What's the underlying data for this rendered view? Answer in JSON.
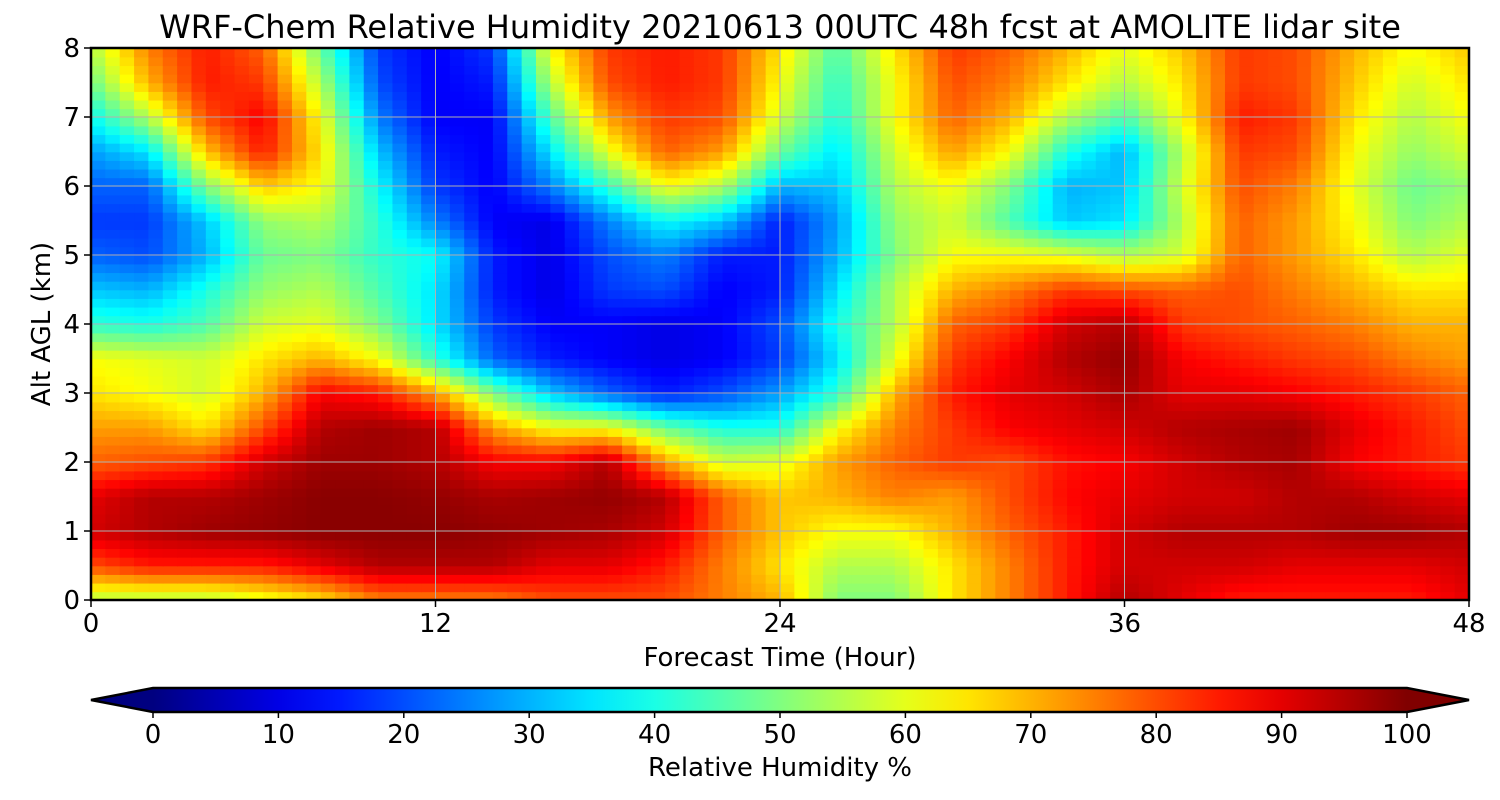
{
  "chart_data": {
    "type": "heatmap",
    "title": "WRF-Chem Relative Humidity 20210613 00UTC 48h fcst at AMOLITE lidar site",
    "xlabel": "Forecast Time (Hour)",
    "ylabel": "Alt AGL (km)",
    "xlim": [
      0,
      48
    ],
    "ylim": [
      0,
      8
    ],
    "x_ticks": [
      0,
      12,
      24,
      36,
      48
    ],
    "y_ticks": [
      0,
      1,
      2,
      3,
      4,
      5,
      6,
      7,
      8
    ],
    "grid": true,
    "colormap": "jet",
    "colorbar": {
      "label": "Relative Humidity %",
      "orientation": "horizontal",
      "position": "bottom",
      "extend": "both",
      "ticks": [
        0,
        10,
        20,
        30,
        40,
        50,
        60,
        70,
        80,
        90,
        100
      ],
      "range": [
        0,
        100
      ]
    },
    "x": [
      0,
      2,
      4,
      6,
      8,
      10,
      12,
      14,
      16,
      18,
      20,
      22,
      24,
      26,
      28,
      30,
      32,
      34,
      36,
      38,
      40,
      42,
      44,
      46,
      48
    ],
    "y": [
      0,
      0.5,
      1,
      1.5,
      2,
      2.5,
      3,
      3.5,
      4,
      4.5,
      5,
      5.5,
      6,
      6.5,
      7,
      7.5,
      8
    ],
    "z": [
      [
        55,
        55,
        55,
        60,
        65,
        75,
        75,
        75,
        80,
        80,
        80,
        75,
        70,
        50,
        50,
        65,
        75,
        85,
        95,
        90,
        85,
        85,
        85,
        85,
        90
      ],
      [
        80,
        85,
        85,
        85,
        90,
        95,
        95,
        95,
        90,
        90,
        85,
        75,
        65,
        55,
        55,
        65,
        75,
        85,
        92,
        92,
        92,
        90,
        90,
        90,
        92
      ],
      [
        92,
        95,
        97,
        98,
        99,
        99,
        99,
        98,
        97,
        96,
        92,
        78,
        68,
        62,
        62,
        70,
        78,
        85,
        92,
        95,
        95,
        95,
        97,
        97,
        95
      ],
      [
        90,
        95,
        95,
        97,
        99,
        99,
        98,
        96,
        97,
        98,
        95,
        78,
        68,
        70,
        75,
        72,
        80,
        87,
        90,
        92,
        92,
        95,
        95,
        92,
        90
      ],
      [
        78,
        80,
        82,
        92,
        97,
        97,
        95,
        88,
        88,
        95,
        72,
        58,
        60,
        72,
        78,
        82,
        80,
        86,
        88,
        92,
        95,
        96,
        88,
        85,
        82
      ],
      [
        72,
        72,
        65,
        80,
        95,
        97,
        95,
        72,
        62,
        62,
        48,
        40,
        40,
        62,
        75,
        82,
        88,
        90,
        92,
        95,
        96,
        97,
        90,
        85,
        80
      ],
      [
        65,
        62,
        58,
        70,
        88,
        85,
        72,
        50,
        32,
        22,
        15,
        20,
        28,
        42,
        70,
        85,
        90,
        92,
        96,
        90,
        90,
        88,
        85,
        82,
        78
      ],
      [
        62,
        60,
        58,
        65,
        70,
        62,
        42,
        22,
        15,
        12,
        10,
        12,
        18,
        35,
        60,
        82,
        88,
        95,
        98,
        88,
        85,
        82,
        80,
        75,
        72
      ],
      [
        42,
        40,
        45,
        58,
        60,
        50,
        35,
        18,
        12,
        12,
        10,
        12,
        20,
        40,
        55,
        78,
        82,
        92,
        95,
        82,
        80,
        78,
        75,
        70,
        70
      ],
      [
        32,
        30,
        40,
        52,
        55,
        45,
        35,
        15,
        10,
        18,
        20,
        12,
        15,
        35,
        55,
        70,
        75,
        82,
        80,
        78,
        80,
        75,
        70,
        65,
        65
      ],
      [
        22,
        20,
        30,
        48,
        50,
        42,
        38,
        15,
        10,
        20,
        25,
        15,
        15,
        30,
        50,
        62,
        62,
        60,
        55,
        58,
        78,
        72,
        65,
        55,
        60
      ],
      [
        18,
        18,
        32,
        52,
        55,
        42,
        25,
        12,
        10,
        25,
        38,
        32,
        15,
        28,
        52,
        58,
        45,
        32,
        35,
        55,
        78,
        72,
        62,
        50,
        55
      ],
      [
        22,
        22,
        50,
        68,
        62,
        38,
        18,
        12,
        25,
        42,
        62,
        55,
        30,
        32,
        55,
        62,
        50,
        30,
        32,
        58,
        80,
        75,
        60,
        48,
        52
      ],
      [
        28,
        35,
        68,
        85,
        65,
        32,
        15,
        12,
        35,
        60,
        78,
        72,
        48,
        35,
        58,
        72,
        62,
        40,
        30,
        55,
        82,
        80,
        62,
        52,
        58
      ],
      [
        38,
        55,
        80,
        88,
        62,
        25,
        12,
        12,
        45,
        72,
        82,
        80,
        58,
        40,
        62,
        78,
        70,
        55,
        45,
        62,
        85,
        82,
        65,
        55,
        62
      ],
      [
        48,
        70,
        85,
        82,
        55,
        20,
        12,
        15,
        55,
        80,
        85,
        82,
        62,
        42,
        62,
        80,
        75,
        65,
        55,
        65,
        82,
        80,
        68,
        58,
        65
      ],
      [
        55,
        75,
        85,
        78,
        48,
        18,
        12,
        18,
        62,
        82,
        85,
        82,
        65,
        45,
        65,
        82,
        78,
        70,
        60,
        68,
        82,
        80,
        70,
        62,
        68
      ]
    ]
  }
}
